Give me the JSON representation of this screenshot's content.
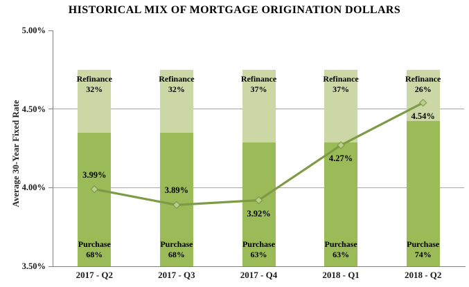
{
  "chart_data": {
    "type": "combo",
    "subtypes": [
      "stacked-bar-100pct",
      "line"
    ],
    "title": "HISTORICAL MIX OF MORTGAGE ORIGINATION DOLLARS",
    "ylabel": "Average 30-Year Fixed Rate",
    "xlabel": "",
    "ylim": [
      3.5,
      5.0
    ],
    "yticks": [
      {
        "value": 5.0,
        "label": "5.00%"
      },
      {
        "value": 4.5,
        "label": "4.50%"
      },
      {
        "value": 4.0,
        "label": "4.00%"
      },
      {
        "value": 3.5,
        "label": "3.50%"
      }
    ],
    "grid": {
      "values": [
        4.5,
        4.0
      ],
      "color": "#a6a6a6"
    },
    "categories": [
      "2017 - Q2",
      "2017 - Q3",
      "2017 - Q4",
      "2018 - Q1",
      "2018 - Q2"
    ],
    "bar_span": {
      "bottom": 3.5,
      "top": 4.75
    },
    "series": [
      {
        "name": "Purchase",
        "type": "bar",
        "stack_position": "bottom",
        "unit": "%",
        "color": "#9bbb59",
        "values": [
          68,
          68,
          63,
          63,
          74
        ]
      },
      {
        "name": "Refinance",
        "type": "bar",
        "stack_position": "top",
        "unit": "%",
        "color": "#ccd7a6",
        "values": [
          32,
          32,
          37,
          37,
          26
        ]
      },
      {
        "name": "Average 30-Year Fixed Rate",
        "type": "line",
        "unit": "%",
        "color": "#7d9b44",
        "marker": {
          "shape": "diamond",
          "fill": "#b9cd8c",
          "stroke": "#77933c"
        },
        "values": [
          3.99,
          3.89,
          3.92,
          4.27,
          4.54
        ],
        "labels": [
          "3.99%",
          "3.89%",
          "3.92%",
          "4.27%",
          "4.54%"
        ],
        "label_positions": [
          "above",
          "above",
          "below",
          "below",
          "below"
        ]
      }
    ],
    "legend": {
      "visible": false
    },
    "axis_color": "#808080",
    "text_color": "#000000",
    "background": "#ffffff"
  }
}
